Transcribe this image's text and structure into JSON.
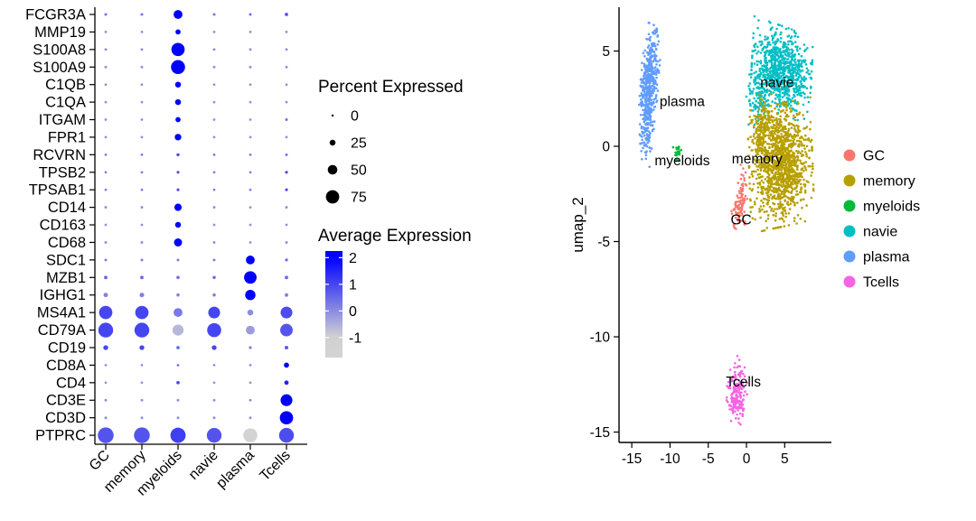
{
  "figure": {
    "background": "#FFFFFF"
  },
  "chart_data": [
    {
      "type": "dotplot",
      "name": "marker-gene-dotplot",
      "cell_types": [
        "GC",
        "memory",
        "myeloids",
        "navie",
        "plasma",
        "Tcells"
      ],
      "rows": [
        {
          "gene": "FCGR3A",
          "pct": [
            4,
            4,
            45,
            4,
            3,
            8
          ],
          "avg": [
            0.3,
            0.3,
            2,
            0.3,
            0.5,
            0.8
          ]
        },
        {
          "gene": "MMP19",
          "pct": [
            2,
            2,
            20,
            2,
            2,
            2
          ],
          "avg": [
            0,
            0,
            2,
            0,
            0,
            0
          ]
        },
        {
          "gene": "S100A8",
          "pct": [
            3,
            3,
            75,
            3,
            3,
            3
          ],
          "avg": [
            0,
            0,
            2,
            0,
            0,
            0
          ]
        },
        {
          "gene": "S100A9",
          "pct": [
            3,
            3,
            80,
            3,
            3,
            3
          ],
          "avg": [
            0,
            0,
            2,
            0,
            0,
            0
          ]
        },
        {
          "gene": "C1QB",
          "pct": [
            2,
            2,
            25,
            2,
            2,
            2
          ],
          "avg": [
            0,
            0,
            2,
            0,
            0,
            0
          ]
        },
        {
          "gene": "C1QA",
          "pct": [
            2,
            2,
            25,
            2,
            2,
            2
          ],
          "avg": [
            0,
            0,
            2,
            0,
            0,
            0
          ]
        },
        {
          "gene": "ITGAM",
          "pct": [
            2,
            2,
            20,
            2,
            2,
            3
          ],
          "avg": [
            0,
            0,
            2,
            0,
            0,
            0.5
          ]
        },
        {
          "gene": "FPR1",
          "pct": [
            2,
            2,
            30,
            2,
            2,
            2
          ],
          "avg": [
            0,
            0,
            2,
            0,
            0,
            0
          ]
        },
        {
          "gene": "RCVRN",
          "pct": [
            2,
            2,
            6,
            2,
            2,
            3
          ],
          "avg": [
            0.3,
            0.3,
            1,
            0.3,
            0.3,
            0.5
          ]
        },
        {
          "gene": "TPSB2",
          "pct": [
            2,
            2,
            4,
            2,
            2,
            5
          ],
          "avg": [
            0.3,
            0.3,
            1,
            0.3,
            0.3,
            1
          ]
        },
        {
          "gene": "TPSAB1",
          "pct": [
            2,
            2,
            4,
            2,
            2,
            4
          ],
          "avg": [
            0.3,
            0.3,
            1,
            0.3,
            0.3,
            1
          ]
        },
        {
          "gene": "CD14",
          "pct": [
            3,
            3,
            35,
            3,
            2,
            3
          ],
          "avg": [
            0,
            0,
            2,
            0,
            0,
            0
          ]
        },
        {
          "gene": "CD163",
          "pct": [
            2,
            2,
            25,
            2,
            2,
            2
          ],
          "avg": [
            0,
            0,
            2,
            0,
            0,
            0
          ]
        },
        {
          "gene": "CD68",
          "pct": [
            3,
            3,
            40,
            3,
            2,
            3
          ],
          "avg": [
            0,
            0,
            2,
            0,
            0,
            0
          ]
        },
        {
          "gene": "SDC1",
          "pct": [
            3,
            3,
            3,
            3,
            45,
            5
          ],
          "avg": [
            0.3,
            0.3,
            0.3,
            0.3,
            2,
            0.5
          ]
        },
        {
          "gene": "MZB1",
          "pct": [
            9,
            9,
            7,
            7,
            70,
            9
          ],
          "avg": [
            0.5,
            0.5,
            0.5,
            0.5,
            2,
            0.5
          ]
        },
        {
          "gene": "IGHG1",
          "pct": [
            15,
            16,
            7,
            7,
            55,
            9
          ],
          "avg": [
            0.2,
            0.2,
            0.2,
            0.2,
            2,
            0.2
          ]
        },
        {
          "gene": "MS4A1",
          "pct": [
            75,
            75,
            45,
            65,
            25,
            65
          ],
          "avg": [
            1,
            1,
            0.3,
            1,
            0,
            0.9
          ]
        },
        {
          "gene": "CD79A",
          "pct": [
            85,
            85,
            60,
            80,
            45,
            70
          ],
          "avg": [
            1,
            1,
            -0.6,
            1,
            -0.2,
            0.8
          ]
        },
        {
          "gene": "CD19",
          "pct": [
            18,
            18,
            8,
            18,
            5,
            10
          ],
          "avg": [
            1,
            1,
            0.5,
            1,
            0.2,
            0.7
          ]
        },
        {
          "gene": "CD8A",
          "pct": [
            2,
            2,
            3,
            2,
            2,
            20
          ],
          "avg": [
            0,
            0,
            0.3,
            0,
            0,
            2
          ]
        },
        {
          "gene": "CD4",
          "pct": [
            2,
            2,
            8,
            2,
            2,
            15
          ],
          "avg": [
            0,
            0,
            1,
            0,
            0,
            1.5
          ]
        },
        {
          "gene": "CD3E",
          "pct": [
            3,
            3,
            3,
            3,
            3,
            65
          ],
          "avg": [
            0,
            0,
            0,
            0,
            0,
            2
          ]
        },
        {
          "gene": "CD3D",
          "pct": [
            3,
            3,
            3,
            3,
            3,
            75
          ],
          "avg": [
            0,
            0,
            0,
            0,
            0,
            2
          ]
        },
        {
          "gene": "PTPRC",
          "pct": [
            92,
            92,
            88,
            85,
            80,
            85
          ],
          "avg": [
            0.8,
            0.8,
            1.1,
            0.8,
            -1,
            0.9
          ]
        }
      ],
      "size_legend": {
        "title": "Percent Expressed",
        "values": [
          0,
          25,
          50,
          75
        ]
      },
      "color_legend": {
        "title": "Average Expression",
        "ticks": [
          2,
          1,
          0,
          -1
        ],
        "min_color": "#D3D3D3",
        "max_color": "#0000FF",
        "domain": [
          -1,
          2
        ]
      }
    },
    {
      "type": "scatter",
      "name": "umap",
      "xlabel": "",
      "ylabel": "umap_2",
      "x_ticks": [
        -15,
        -10,
        -5,
        0,
        5
      ],
      "y_ticks": [
        -15,
        -10,
        -5,
        0,
        5
      ],
      "xlim": [
        -16.7,
        11.1
      ],
      "ylim": [
        -15.5,
        7.3
      ],
      "legend_position": "right",
      "clusters": [
        {
          "name": "GC",
          "color": "#F8766D",
          "label_pos": [
            -0.7,
            -4.1
          ],
          "parts": [
            {
              "c": [
                -0.9,
                -3.2
              ],
              "s": [
                0.4,
                0.6
              ],
              "n": 80,
              "angle": -20
            },
            {
              "c": [
                -0.4,
                -1.9
              ],
              "s": [
                0.25,
                0.5
              ],
              "n": 18,
              "angle": 0
            }
          ]
        },
        {
          "name": "memory",
          "color": "#B79F00",
          "label_pos": [
            1.4,
            -0.9
          ],
          "parts": [
            {
              "c": [
                4.5,
                -1.0
              ],
              "s": [
                1.8,
                1.4
              ],
              "n": 1200,
              "angle": 5
            },
            {
              "c": [
                2.2,
                0.9
              ],
              "s": [
                0.8,
                0.8
              ],
              "n": 150,
              "angle": 0
            }
          ]
        },
        {
          "name": "myeloids",
          "color": "#00BA38",
          "label_pos": [
            -8.4,
            -1.0
          ],
          "parts": [
            {
              "c": [
                -9.0,
                -0.35
              ],
              "s": [
                0.28,
                0.22
              ],
              "n": 22,
              "angle": 0
            }
          ]
        },
        {
          "name": "navie",
          "color": "#00BFC4",
          "label_pos": [
            4.0,
            3.1
          ],
          "parts": [
            {
              "c": [
                4.6,
                4.0
              ],
              "s": [
                1.7,
                1.0
              ],
              "n": 800,
              "angle": -8
            },
            {
              "c": [
                1.6,
                2.6
              ],
              "s": [
                0.7,
                0.7
              ],
              "n": 120,
              "angle": 0
            }
          ]
        },
        {
          "name": "plasma",
          "color": "#619CFF",
          "label_pos": [
            -8.4,
            2.1
          ],
          "parts": [
            {
              "c": [
                -12.7,
                3.2
              ],
              "s": [
                0.5,
                1.4
              ],
              "n": 500,
              "angle": -10
            },
            {
              "c": [
                -13.1,
                0.3
              ],
              "s": [
                0.35,
                0.6
              ],
              "n": 40,
              "angle": 0
            }
          ]
        },
        {
          "name": "Tcells",
          "color": "#F564E3",
          "label_pos": [
            -0.4,
            -12.6
          ],
          "parts": [
            {
              "c": [
                -1.3,
                -13.1
              ],
              "s": [
                0.6,
                0.65
              ],
              "n": 170,
              "angle": 0
            },
            {
              "c": [
                -1.0,
                -11.9
              ],
              "s": [
                0.3,
                0.4
              ],
              "n": 18,
              "angle": 0
            }
          ]
        }
      ],
      "legend": {
        "items": [
          {
            "label": "GC",
            "color": "#F8766D"
          },
          {
            "label": "memory",
            "color": "#B79F00"
          },
          {
            "label": "myeloids",
            "color": "#00BA38"
          },
          {
            "label": "navie",
            "color": "#00BFC4"
          },
          {
            "label": "plasma",
            "color": "#619CFF"
          },
          {
            "label": "Tcells",
            "color": "#F564E3"
          }
        ]
      }
    }
  ]
}
